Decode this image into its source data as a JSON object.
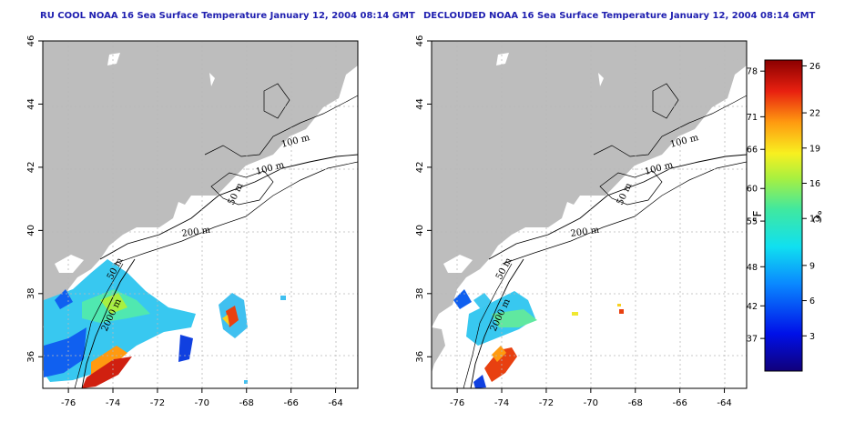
{
  "titles": {
    "left": "RU COOL NOAA 16 Sea Surface Temperature January 12, 2004 08:14 GMT",
    "right": "DECLOUDED NOAA 16 Sea Surface Temperature January 12, 2004 08:14 GMT"
  },
  "axes": {
    "lon_labels": [
      "-76",
      "-74",
      "-72",
      "-70",
      "-68",
      "-66",
      "-64"
    ],
    "lat_labels": [
      "36",
      "38",
      "40",
      "42",
      "44",
      "46"
    ],
    "lon_values": [
      -76,
      -74,
      -72,
      -70,
      -68,
      -66,
      -64
    ],
    "lat_values": [
      36,
      38,
      40,
      42,
      44,
      46
    ]
  },
  "contour_labels": [
    "100 m",
    "100 m",
    "50 m",
    "200 m",
    "50 m",
    "2000 m"
  ],
  "colorbar": {
    "f_labels": [
      "78",
      "71",
      "66",
      "60",
      "55",
      "48",
      "42",
      "37"
    ],
    "c_labels": [
      "26",
      "22",
      "19",
      "16",
      "13",
      "9",
      "6",
      "3"
    ],
    "f_values": [
      78,
      71,
      66,
      60,
      55,
      48,
      42,
      37
    ],
    "c_values": [
      26,
      22,
      19,
      16,
      13,
      9,
      6,
      3
    ],
    "unit_f": "°F",
    "unit_c": "°C",
    "range_c": [
      0,
      26.5
    ]
  },
  "colors": {
    "land": "#bdbdbd",
    "title": "#2020b0"
  }
}
